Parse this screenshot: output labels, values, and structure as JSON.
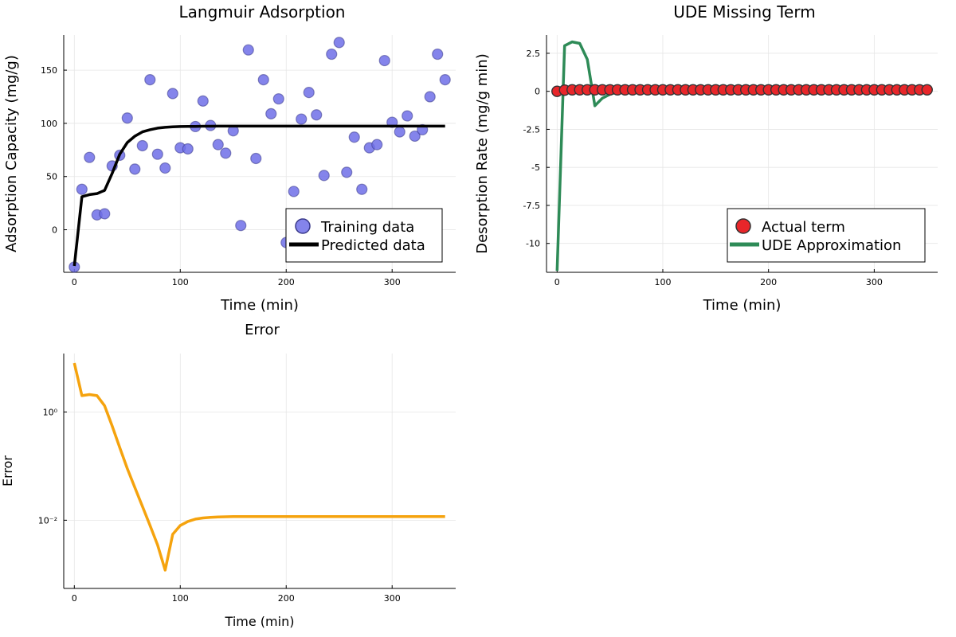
{
  "chart_data": [
    {
      "type": "scatter",
      "title": "Langmuir Adsorption",
      "xlabel": "Time (min)",
      "ylabel": "Adsorption Capacity (mg/g)",
      "xlim": [
        -10,
        360
      ],
      "ylim": [
        -40,
        183
      ],
      "xticks": [
        0,
        100,
        200,
        300
      ],
      "yticks": [
        0,
        50,
        100,
        150
      ],
      "grid": true,
      "legend_position": "bottom-right",
      "series": [
        {
          "name": "Training data",
          "kind": "scatter",
          "color": "#6f6fe8",
          "x": [
            0,
            7.14,
            14.29,
            21.43,
            28.57,
            35.71,
            42.86,
            50,
            57.14,
            64.29,
            71.43,
            78.57,
            85.71,
            92.86,
            100,
            107.14,
            114.29,
            121.43,
            128.57,
            135.71,
            142.86,
            150,
            157.14,
            164.29,
            171.43,
            178.57,
            185.71,
            192.86,
            200,
            207.14,
            214.29,
            221.43,
            228.57,
            235.71,
            242.86,
            250,
            257.14,
            264.29,
            271.43,
            278.57,
            285.71,
            292.86,
            300,
            307.14,
            314.29,
            321.43,
            328.57,
            335.71,
            342.86,
            350
          ],
          "y": [
            -35,
            38,
            68,
            14,
            15,
            60,
            70,
            105,
            57,
            79,
            141,
            71,
            58,
            128,
            77,
            76,
            97,
            121,
            98,
            80,
            72,
            93,
            4,
            169,
            67,
            141,
            109,
            123,
            -12,
            36,
            104,
            129,
            108,
            51,
            165,
            176,
            54,
            87,
            38,
            77,
            80,
            159,
            101,
            92,
            107,
            88,
            94,
            125,
            165,
            141
          ]
        },
        {
          "name": "Predicted data",
          "kind": "line",
          "color": "#000000",
          "x": [
            0,
            7.14,
            14.29,
            21.43,
            28.57,
            35.71,
            42.86,
            50,
            57.14,
            64.29,
            71.43,
            78.57,
            85.71,
            92.86,
            100,
            107.14,
            114.29,
            121.43,
            128.57,
            135.71,
            150,
            175,
            200,
            250,
            300,
            350
          ],
          "y": [
            -34,
            31,
            33,
            34,
            37,
            53,
            71,
            82,
            88,
            92,
            94,
            95.5,
            96.3,
            96.8,
            97,
            97.1,
            97.2,
            97.3,
            97.3,
            97.4,
            97.4,
            97.4,
            97.4,
            97.4,
            97.4,
            97.4
          ]
        }
      ]
    },
    {
      "type": "line",
      "title": "UDE Missing Term",
      "xlabel": "Time (min)",
      "ylabel": "Desorption Rate (mg/g min)",
      "xlim": [
        -10,
        360
      ],
      "ylim": [
        -11.9,
        3.7
      ],
      "xticks": [
        0,
        100,
        200,
        300
      ],
      "yticks": [
        2.5,
        0.0,
        -2.5,
        -5.0,
        -7.5,
        -10.0
      ],
      "grid": true,
      "legend_position": "bottom-right",
      "series": [
        {
          "name": "Actual term",
          "kind": "scatter",
          "color": "#e8262a",
          "x": [
            0,
            7.14,
            14.29,
            21.43,
            28.57,
            35.71,
            42.86,
            50,
            57.14,
            64.29,
            71.43,
            78.57,
            85.71,
            92.86,
            100,
            107.14,
            114.29,
            121.43,
            128.57,
            135.71,
            142.86,
            150,
            157.14,
            164.29,
            171.43,
            178.57,
            185.71,
            192.86,
            200,
            207.14,
            214.29,
            221.43,
            228.57,
            235.71,
            242.86,
            250,
            257.14,
            264.29,
            271.43,
            278.57,
            285.71,
            292.86,
            300,
            307.14,
            314.29,
            321.43,
            328.57,
            335.71,
            342.86,
            350
          ],
          "y": [
            0.0,
            0.08,
            0.1,
            0.1,
            0.1,
            0.1,
            0.1,
            0.1,
            0.1,
            0.1,
            0.1,
            0.1,
            0.1,
            0.1,
            0.1,
            0.1,
            0.1,
            0.1,
            0.1,
            0.1,
            0.1,
            0.1,
            0.1,
            0.1,
            0.1,
            0.1,
            0.1,
            0.1,
            0.1,
            0.1,
            0.1,
            0.1,
            0.1,
            0.1,
            0.1,
            0.1,
            0.1,
            0.1,
            0.1,
            0.1,
            0.1,
            0.1,
            0.1,
            0.1,
            0.1,
            0.1,
            0.1,
            0.1,
            0.1,
            0.1
          ]
        },
        {
          "name": "UDE Approximation",
          "kind": "line",
          "color": "#2e8b57",
          "x": [
            0,
            7.14,
            14.29,
            21.43,
            28.57,
            35.71,
            42.86,
            50,
            57.14,
            64.29,
            71.43,
            100,
            150,
            200,
            250,
            300,
            350
          ],
          "y": [
            -11.8,
            3.0,
            3.25,
            3.15,
            2.1,
            -0.95,
            -0.45,
            -0.2,
            -0.05,
            0.0,
            0.0,
            0.0,
            0.0,
            0.0,
            0.0,
            0.0,
            0.0
          ]
        }
      ]
    },
    {
      "type": "line",
      "title": "Error",
      "xlabel": "Time (min)",
      "ylabel": "Error",
      "xlim": [
        -10,
        360
      ],
      "yscale": "log",
      "ylim": [
        0.00055,
        12
      ],
      "xticks": [
        0,
        100,
        200,
        300
      ],
      "yticks": [
        1,
        0.01
      ],
      "ytick_labels": [
        "10⁰",
        "10⁻²"
      ],
      "grid": true,
      "series": [
        {
          "name": "",
          "kind": "line",
          "color": "#f5a30e",
          "x": [
            0,
            7.14,
            14.29,
            21.43,
            28.57,
            35.71,
            42.86,
            50,
            57.14,
            64.29,
            71.43,
            78.57,
            85.71,
            92.86,
            100,
            107.14,
            114.29,
            121.43,
            128.57,
            135.71,
            142.86,
            150,
            171.43,
            200,
            250,
            300,
            350
          ],
          "y": [
            8.0,
            2.0,
            2.1,
            2.0,
            1.3,
            0.55,
            0.22,
            0.09,
            0.04,
            0.018,
            0.008,
            0.0035,
            0.0012,
            0.0055,
            0.008,
            0.0095,
            0.0105,
            0.011,
            0.0113,
            0.0115,
            0.0116,
            0.0117,
            0.0117,
            0.0117,
            0.0117,
            0.0117,
            0.0117
          ]
        }
      ]
    }
  ]
}
